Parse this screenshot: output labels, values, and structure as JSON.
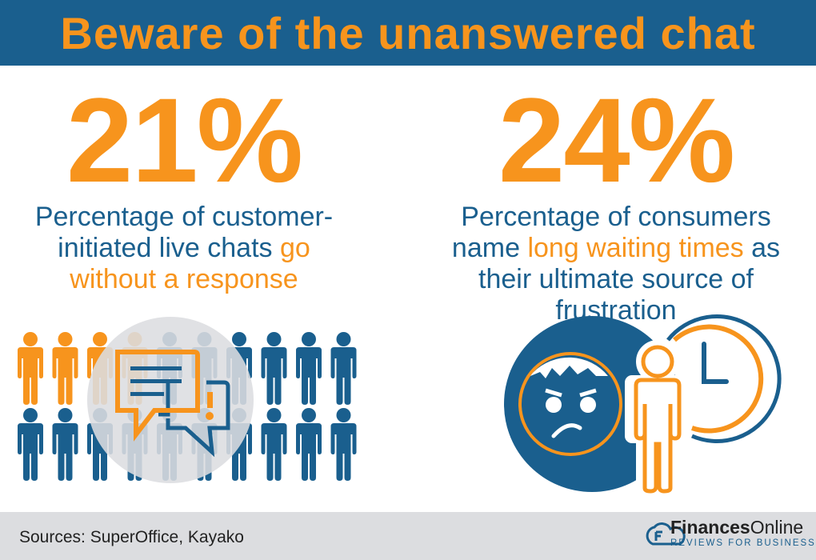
{
  "title": "Beware of the unanswered chat",
  "stats": [
    {
      "value": "21%",
      "text_plain": "Percentage of customer-initiated live chats",
      "text_highlight": "go without a response",
      "text_tail": "",
      "people_highlighted": 4,
      "people_total": 20
    },
    {
      "value": "24%",
      "text_plain": "Percentage of consumers name",
      "text_highlight": "long waiting times",
      "text_tail": "as their ultimate source of frustration"
    }
  ],
  "icons": {
    "left": "chat-bubbles-icon",
    "right": "frustrated-face-clock-icon"
  },
  "footer": {
    "sources": "Sources: SuperOffice, Kayako",
    "brand_bold": "Finances",
    "brand_light": "Online",
    "tagline": "REVIEWS FOR BUSINESS"
  },
  "colors": {
    "blue": "#1a5f8e",
    "orange": "#f7941d",
    "gray": "#dcdde0"
  }
}
